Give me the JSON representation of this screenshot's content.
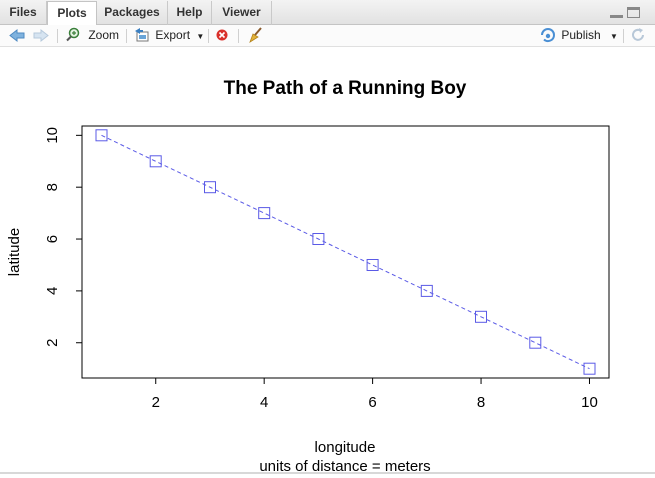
{
  "tabs": [
    "Files",
    "Plots",
    "Packages",
    "Help",
    "Viewer"
  ],
  "toolbar": {
    "zoom_label": "Zoom",
    "export_label": "Export",
    "publish_label": "Publish",
    "icons": [
      "back-arrow-icon",
      "forward-arrow-icon",
      "zoom-icon",
      "export-icon",
      "remove-plot-icon",
      "broom-icon",
      "publish-icon",
      "refresh-icon"
    ]
  },
  "chart_data": {
    "type": "line",
    "title": "The Path of a Running Boy",
    "xlabel": "longitude",
    "subtitle": "units of distance = meters",
    "ylabel": "latitude",
    "x": [
      1,
      2,
      3,
      4,
      5,
      6,
      7,
      8,
      9,
      10
    ],
    "y": [
      10,
      9,
      8,
      7,
      6,
      5,
      4,
      3,
      2,
      1
    ],
    "xticks": [
      2,
      4,
      6,
      8,
      10
    ],
    "yticks": [
      2,
      4,
      6,
      8,
      10
    ],
    "xlim": [
      0.64,
      10.36
    ],
    "ylim": [
      0.64,
      10.36
    ],
    "line_style": "dashed",
    "marker": "open-square",
    "color": "#5a5ae6"
  }
}
